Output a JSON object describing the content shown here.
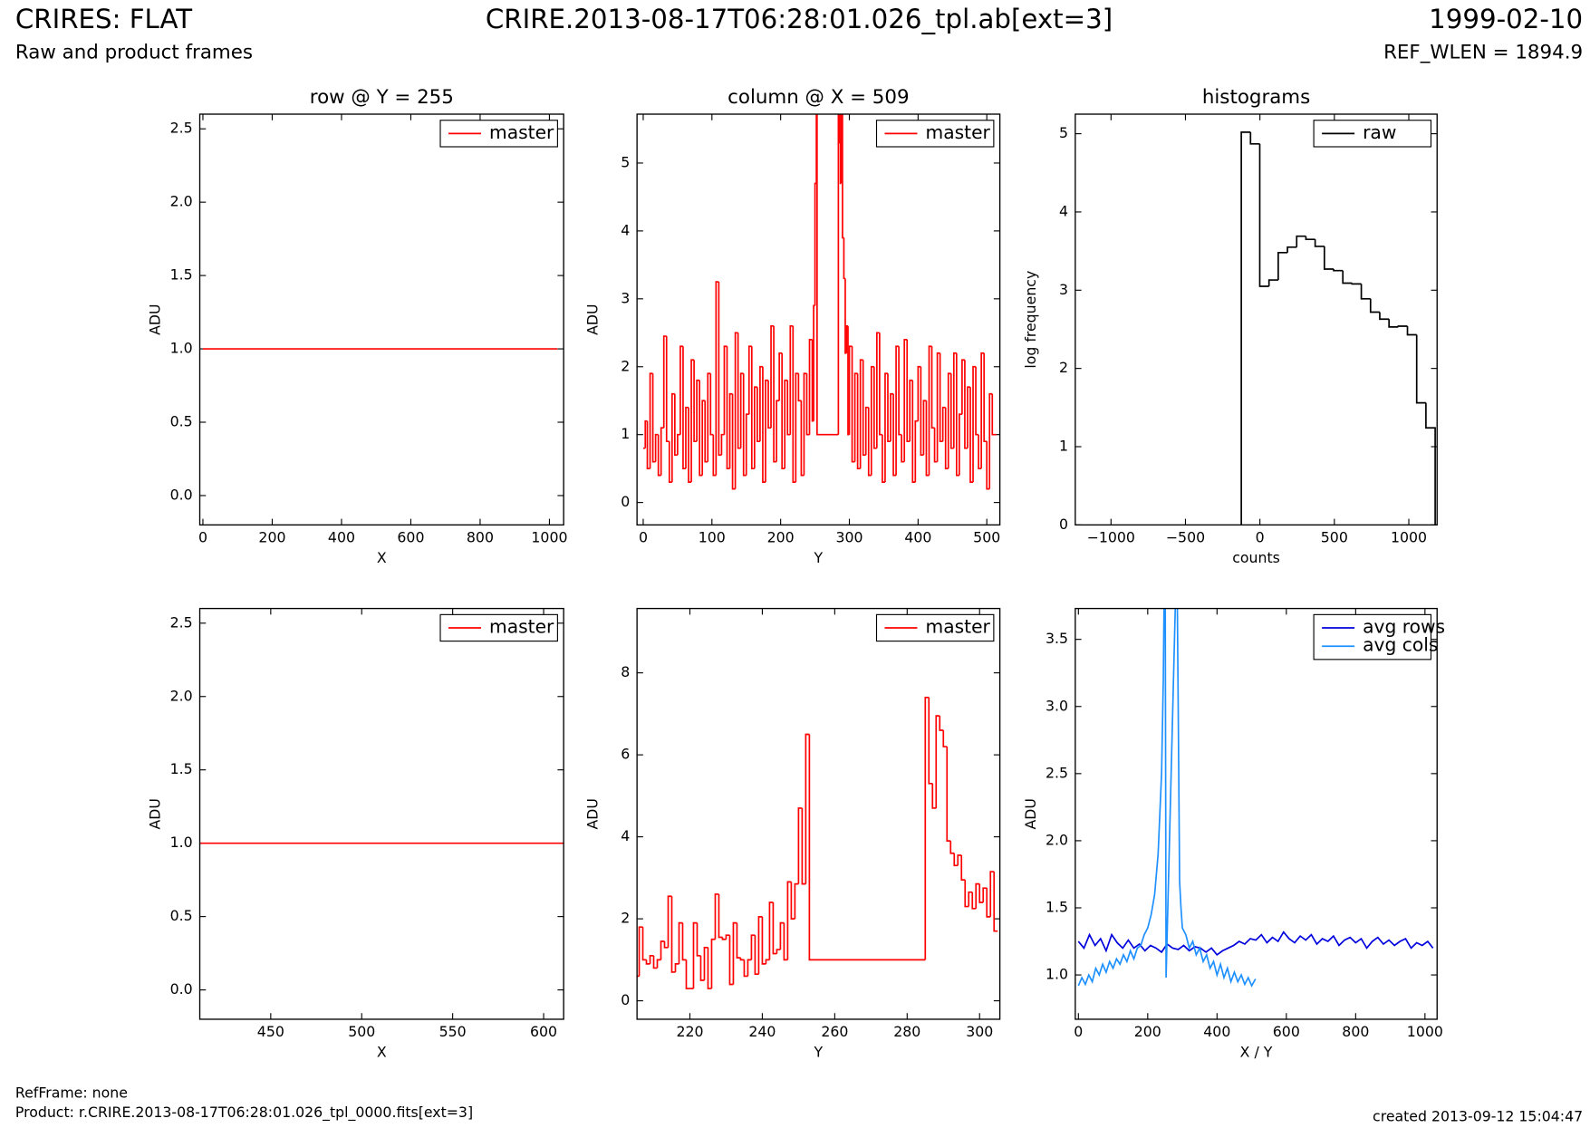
{
  "header": {
    "title": "CRIRES: FLAT",
    "subtitle": "Raw and product frames",
    "file": "CRIRE.2013-08-17T06:28:01.026_tpl.ab[ext=3]",
    "date": "1999-02-10",
    "ref_wlen": "REF_WLEN = 1894.9"
  },
  "footer": {
    "refframe": "RefFrame: none",
    "product": "Product: r.CRIRE.2013-08-17T06:28:01.026_tpl_0000.fits[ext=3]",
    "created": "created 2013-09-12 15:04:47"
  },
  "chart_data": [
    {
      "type": "line",
      "title": "row @ Y = 255",
      "xlabel": "X",
      "ylabel": "ADU",
      "legend": "upper right",
      "xlim": [
        -9,
        1041
      ],
      "xticks": [
        0,
        200,
        400,
        600,
        800,
        1000
      ],
      "ylim": [
        -0.2,
        2.6
      ],
      "yticks": [
        {
          "value": 0,
          "label": "0.0"
        },
        0.5,
        {
          "value": 1,
          "label": "1.0"
        },
        1.5,
        {
          "value": 2,
          "label": "2.0"
        },
        2.5
      ],
      "series": [
        {
          "name": "master",
          "color": "#ff0000",
          "x": [
            0,
            1023
          ],
          "values": [
            1,
            1
          ]
        }
      ]
    },
    {
      "type": "step",
      "title": "column @ X = 509",
      "xlabel": "Y",
      "ylabel": "ADU",
      "legend": "upper right",
      "xlim": [
        -9,
        519
      ],
      "xticks": [
        0,
        100,
        200,
        300,
        400,
        500
      ],
      "ylim": [
        -0.33,
        5.72
      ],
      "yticks": [
        0,
        1,
        2,
        3,
        4,
        5
      ],
      "series": [
        {
          "name": "master",
          "color": "#ff0000",
          "x": [
            0,
            3,
            6,
            10,
            14,
            18,
            22,
            26,
            30,
            34,
            38,
            42,
            46,
            50,
            54,
            58,
            62,
            66,
            70,
            74,
            78,
            82,
            86,
            90,
            94,
            98,
            102,
            106,
            110,
            114,
            118,
            122,
            126,
            130,
            134,
            138,
            142,
            146,
            150,
            154,
            158,
            162,
            166,
            170,
            174,
            178,
            182,
            186,
            190,
            194,
            198,
            202,
            206,
            210,
            214,
            218,
            222,
            226,
            230,
            234,
            238,
            242,
            246,
            248,
            250,
            252,
            253,
            284,
            286,
            287,
            288,
            290,
            292,
            294,
            296,
            298,
            300,
            304,
            308,
            312,
            316,
            320,
            324,
            328,
            332,
            336,
            340,
            344,
            348,
            352,
            356,
            360,
            364,
            368,
            372,
            376,
            380,
            384,
            388,
            392,
            396,
            400,
            404,
            408,
            412,
            416,
            420,
            424,
            428,
            432,
            436,
            440,
            444,
            448,
            452,
            456,
            460,
            464,
            468,
            472,
            476,
            480,
            484,
            488,
            492,
            496,
            500,
            504,
            508,
            511
          ],
          "values": [
            0.8,
            1.2,
            0.5,
            1.9,
            0.6,
            1.0,
            0.4,
            1.1,
            2.45,
            0.9,
            0.3,
            1.6,
            0.7,
            1.0,
            2.3,
            0.5,
            1.4,
            0.3,
            2.1,
            0.9,
            1.8,
            0.4,
            1.5,
            0.6,
            1.9,
            1.0,
            0.4,
            3.25,
            0.7,
            1.0,
            2.3,
            0.5,
            1.6,
            0.2,
            2.5,
            0.8,
            1.9,
            0.4,
            1.3,
            2.3,
            0.5,
            1.7,
            0.9,
            2.0,
            0.3,
            1.8,
            1.1,
            2.6,
            0.6,
            1.5,
            2.2,
            0.5,
            1.8,
            1.0,
            2.6,
            0.3,
            1.9,
            1.5,
            0.4,
            1.9,
            1.0,
            2.4,
            1.2,
            2.9,
            4.7,
            6.5,
            1.0,
            7.4,
            5.3,
            4.7,
            6.95,
            3.9,
            3.3,
            2.2,
            2.6,
            1.0,
            2.3,
            0.6,
            1.9,
            0.5,
            2.1,
            0.7,
            1.4,
            0.4,
            2.0,
            0.8,
            2.5,
            1.0,
            0.3,
            1.9,
            0.9,
            1.6,
            0.4,
            2.3,
            1.0,
            0.6,
            2.4,
            0.9,
            1.8,
            0.3,
            1.2,
            2.0,
            0.7,
            1.5,
            0.4,
            2.3,
            1.1,
            0.6,
            2.2,
            0.9,
            1.4,
            0.5,
            1.9,
            0.8,
            2.2,
            0.4,
            1.3,
            2.1,
            0.8,
            1.7,
            0.3,
            2.0,
            1.0,
            0.5,
            2.2,
            0.9,
            0.2,
            1.6,
            1.0,
            1.0
          ]
        }
      ]
    },
    {
      "type": "histogram",
      "title": "histograms",
      "xlabel": "counts",
      "ylabel": "log frequency",
      "legend": "upper right",
      "xlim": [
        -1240,
        1190
      ],
      "xticks": [
        {
          "value": -1000,
          "label": "−1000"
        },
        {
          "value": -500,
          "label": "−500"
        },
        0,
        500,
        1000
      ],
      "ylim": [
        0,
        5.25
      ],
      "yticks": [
        0,
        1,
        2,
        3,
        4,
        5
      ],
      "series": [
        {
          "name": "raw",
          "color": "#000000",
          "bins": [
            -125,
            -63,
            -1,
            61,
            123,
            185,
            247,
            309,
            371,
            433,
            495,
            557,
            619,
            681,
            743,
            805,
            867,
            929,
            991,
            1053,
            1115,
            1177
          ],
          "values": [
            5.02,
            4.87,
            3.05,
            3.13,
            3.48,
            3.55,
            3.69,
            3.65,
            3.56,
            3.27,
            3.25,
            3.09,
            3.08,
            2.89,
            2.72,
            2.63,
            2.53,
            2.54,
            2.43,
            1.56,
            1.24
          ]
        }
      ]
    },
    {
      "type": "line",
      "xlabel": "X",
      "ylabel": "ADU",
      "legend": "upper right",
      "xlim": [
        411,
        611
      ],
      "xticks": [
        450,
        500,
        550,
        600
      ],
      "ylim": [
        -0.2,
        2.6
      ],
      "yticks": [
        {
          "value": 0,
          "label": "0.0"
        },
        0.5,
        {
          "value": 1,
          "label": "1.0"
        },
        1.5,
        {
          "value": 2,
          "label": "2.0"
        },
        2.5
      ],
      "series": [
        {
          "name": "master",
          "color": "#ff0000",
          "x": [
            411,
            611
          ],
          "values": [
            1,
            1
          ]
        }
      ]
    },
    {
      "type": "step",
      "xlabel": "Y",
      "ylabel": "ADU",
      "legend": "upper right",
      "xlim": [
        205.4,
        305.6
      ],
      "xticks": [
        220,
        240,
        260,
        280,
        300
      ],
      "ylim": [
        -0.45,
        9.57
      ],
      "yticks": [
        0,
        2,
        4,
        6,
        8
      ],
      "series": [
        {
          "name": "master",
          "color": "#ff0000",
          "x": [
            205,
            206,
            207,
            208,
            209,
            210,
            211,
            212,
            213,
            214,
            215,
            216,
            217,
            218,
            219,
            220,
            221,
            222,
            223,
            224,
            225,
            226,
            227,
            228,
            229,
            230,
            231,
            232,
            233,
            234,
            235,
            236,
            237,
            238,
            239,
            240,
            241,
            242,
            243,
            244,
            245,
            246,
            247,
            248,
            249,
            250,
            251,
            252,
            253,
            285,
            286,
            287,
            288,
            289,
            290,
            291,
            292,
            293,
            294,
            295,
            296,
            297,
            298,
            299,
            300,
            301,
            302,
            303,
            304
          ],
          "values": [
            0.6,
            1.8,
            1.0,
            0.9,
            1.1,
            0.8,
            1.0,
            1.45,
            1.3,
            2.55,
            0.7,
            0.9,
            1.9,
            1.0,
            0.3,
            0.3,
            1.9,
            1.1,
            0.5,
            1.3,
            0.3,
            1.5,
            2.6,
            1.55,
            1.5,
            1.6,
            0.4,
            1.9,
            1.05,
            1.0,
            0.6,
            1.0,
            1.6,
            0.65,
            2.05,
            0.9,
            1.0,
            2.4,
            1.15,
            1.25,
            1.9,
            1.0,
            2.9,
            2.0,
            2.85,
            4.7,
            2.85,
            6.5,
            1.0,
            7.4,
            5.3,
            4.7,
            6.95,
            6.6,
            6.2,
            3.9,
            3.6,
            3.3,
            3.55,
            2.95,
            2.3,
            2.65,
            2.25,
            2.85,
            2.4,
            2.75,
            2.05,
            3.15,
            1.7
          ]
        }
      ]
    },
    {
      "type": "line",
      "xlabel": "X / Y",
      "ylabel": "ADU",
      "legend": "upper right",
      "xlim": [
        -9,
        1035
      ],
      "xticks": [
        0,
        200,
        400,
        600,
        800,
        1000
      ],
      "ylim": [
        0.67,
        3.73
      ],
      "yticks": [
        {
          "value": 1,
          "label": "1.0"
        },
        1.5,
        {
          "value": 2,
          "label": "2.0"
        },
        2.5,
        {
          "value": 3,
          "label": "3.0"
        },
        3.5
      ],
      "series": [
        {
          "name": "avg rows",
          "color": "#0000dd",
          "x": [
            0,
            16,
            32,
            48,
            64,
            80,
            96,
            112,
            128,
            144,
            160,
            176,
            192,
            208,
            224,
            240,
            256,
            272,
            288,
            304,
            320,
            336,
            352,
            368,
            384,
            400,
            416,
            432,
            448,
            464,
            480,
            496,
            512,
            528,
            544,
            560,
            576,
            592,
            608,
            624,
            640,
            656,
            672,
            688,
            704,
            720,
            736,
            752,
            768,
            784,
            800,
            816,
            832,
            848,
            864,
            880,
            896,
            912,
            928,
            944,
            960,
            976,
            992,
            1008,
            1023
          ],
          "values": [
            1.25,
            1.2,
            1.3,
            1.22,
            1.27,
            1.18,
            1.3,
            1.24,
            1.2,
            1.26,
            1.2,
            1.23,
            1.18,
            1.22,
            1.2,
            1.17,
            1.23,
            1.2,
            1.19,
            1.22,
            1.18,
            1.21,
            1.2,
            1.17,
            1.2,
            1.15,
            1.18,
            1.2,
            1.22,
            1.25,
            1.23,
            1.27,
            1.26,
            1.3,
            1.24,
            1.28,
            1.25,
            1.32,
            1.27,
            1.24,
            1.29,
            1.26,
            1.3,
            1.23,
            1.27,
            1.25,
            1.29,
            1.22,
            1.26,
            1.28,
            1.24,
            1.27,
            1.2,
            1.25,
            1.28,
            1.23,
            1.26,
            1.22,
            1.25,
            1.27,
            1.2,
            1.24,
            1.22,
            1.25,
            1.2
          ]
        },
        {
          "name": "avg cols",
          "color": "#1e90ff",
          "x": [
            0,
            10,
            20,
            30,
            40,
            50,
            60,
            70,
            80,
            90,
            100,
            110,
            120,
            130,
            140,
            150,
            160,
            170,
            180,
            190,
            200,
            210,
            220,
            230,
            240,
            245,
            250,
            253,
            284,
            288,
            292,
            296,
            300,
            310,
            320,
            330,
            340,
            350,
            360,
            370,
            380,
            390,
            400,
            410,
            420,
            430,
            440,
            450,
            460,
            470,
            480,
            490,
            500,
            511
          ],
          "values": [
            0.92,
            0.98,
            0.93,
            1.0,
            0.95,
            1.05,
            1.0,
            1.08,
            1.02,
            1.1,
            1.05,
            1.12,
            1.08,
            1.15,
            1.1,
            1.18,
            1.12,
            1.2,
            1.22,
            1.3,
            1.35,
            1.45,
            1.6,
            1.9,
            2.5,
            3.2,
            4.5,
            0.98,
            4.2,
            3.0,
            1.7,
            1.5,
            1.35,
            1.3,
            1.2,
            1.25,
            1.15,
            1.2,
            1.1,
            1.15,
            1.05,
            1.1,
            1.0,
            1.08,
            0.98,
            1.05,
            0.95,
            1.02,
            0.95,
            1.0,
            0.93,
            0.98,
            0.92,
            0.97
          ]
        }
      ]
    }
  ]
}
